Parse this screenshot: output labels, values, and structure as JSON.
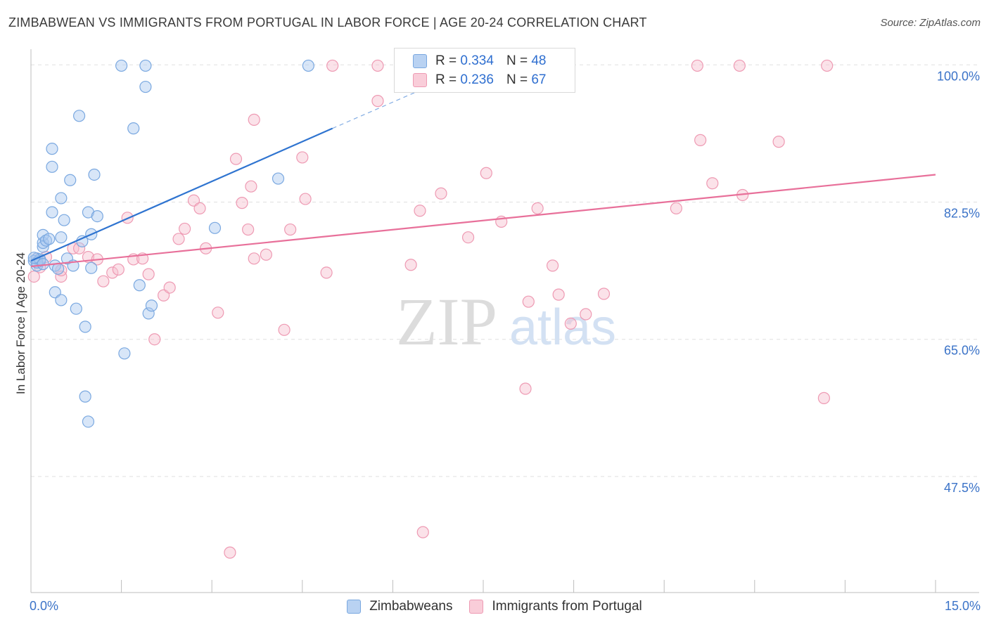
{
  "header": {
    "title": "ZIMBABWEAN VS IMMIGRANTS FROM PORTUGAL IN LABOR FORCE | AGE 20-24 CORRELATION CHART",
    "source": "Source: ZipAtlas.com"
  },
  "watermark": {
    "zip": "ZIP",
    "atlas": "atlas"
  },
  "colors": {
    "blue_fill": "#a9c8f0",
    "blue_stroke": "#7aa8e0",
    "blue_line": "#2f74d0",
    "pink_fill": "#f7bfcf",
    "pink_stroke": "#ee9ab3",
    "pink_line": "#e8709a",
    "axis_label": "#3b73c8",
    "grid": "#e0e0e0"
  },
  "legend_top": {
    "series": [
      {
        "r_label": "R = ",
        "r_value": "0.334",
        "n_label": "N = ",
        "n_value": "48"
      },
      {
        "r_label": "R = ",
        "r_value": "0.236",
        "n_label": "N = ",
        "n_value": "67"
      }
    ]
  },
  "chart_data": {
    "type": "scatter",
    "title": "ZIMBABWEAN VS IMMIGRANTS FROM PORTUGAL IN LABOR FORCE | AGE 20-24 CORRELATION CHART",
    "xlabel": "",
    "ylabel": "In Labor Force | Age 20-24",
    "xlim": [
      0,
      15
    ],
    "ylim": [
      32.7,
      102
    ],
    "x_tick_labels": [
      "0.0%",
      "15.0%"
    ],
    "y_ticks": [
      47.5,
      65.0,
      82.5,
      100.0
    ],
    "y_tick_labels": [
      "47.5%",
      "65.0%",
      "82.5%",
      "100.0%"
    ],
    "legend": [
      "Zimbabweans",
      "Immigrants from Portugal"
    ],
    "series": [
      {
        "name": "Zimbabweans",
        "r": 0.334,
        "n": 48,
        "trend": {
          "x0": 0.0,
          "y0": 75.0,
          "x1": 5.0,
          "y1": 91.9,
          "dash_x1": 7.0,
          "dash_y1": 98.6
        },
        "points": [
          [
            0.1,
            75.3
          ],
          [
            0.1,
            74.4
          ],
          [
            0.15,
            75.0
          ],
          [
            0.2,
            76.8
          ],
          [
            0.2,
            77.3
          ],
          [
            0.2,
            78.3
          ],
          [
            0.25,
            77.6
          ],
          [
            0.3,
            77.8
          ],
          [
            0.35,
            81.2
          ],
          [
            0.35,
            87.0
          ],
          [
            0.35,
            89.3
          ],
          [
            0.4,
            74.4
          ],
          [
            0.4,
            71.0
          ],
          [
            0.45,
            74.0
          ],
          [
            0.5,
            70.0
          ],
          [
            0.5,
            78.0
          ],
          [
            0.5,
            83.0
          ],
          [
            0.55,
            80.2
          ],
          [
            0.6,
            75.3
          ],
          [
            0.65,
            85.3
          ],
          [
            0.7,
            74.4
          ],
          [
            0.75,
            68.9
          ],
          [
            0.8,
            93.5
          ],
          [
            0.85,
            77.5
          ],
          [
            0.9,
            66.6
          ],
          [
            0.9,
            57.7
          ],
          [
            0.95,
            54.5
          ],
          [
            0.95,
            81.2
          ],
          [
            1.0,
            74.1
          ],
          [
            1.0,
            78.4
          ],
          [
            1.05,
            86.0
          ],
          [
            1.1,
            80.7
          ],
          [
            1.5,
            99.9
          ],
          [
            1.55,
            63.2
          ],
          [
            1.7,
            91.9
          ],
          [
            1.8,
            71.9
          ],
          [
            1.9,
            99.9
          ],
          [
            1.9,
            97.2
          ],
          [
            1.95,
            68.3
          ],
          [
            2.0,
            69.3
          ],
          [
            3.05,
            79.2
          ],
          [
            4.1,
            85.5
          ],
          [
            4.6,
            99.9
          ],
          [
            0.05,
            75.0
          ],
          [
            0.1,
            74.8
          ],
          [
            0.15,
            75.2
          ],
          [
            0.05,
            75.4
          ],
          [
            0.2,
            74.6
          ]
        ]
      },
      {
        "name": "Immigrants from Portugal",
        "r": 0.236,
        "n": 67,
        "trend": {
          "x0": 0.0,
          "y0": 74.3,
          "x1": 15.0,
          "y1": 86.0
        },
        "points": [
          [
            0.05,
            73.0
          ],
          [
            0.1,
            75.3
          ],
          [
            0.15,
            74.2
          ],
          [
            0.25,
            75.5
          ],
          [
            0.5,
            73.0
          ],
          [
            0.5,
            73.8
          ],
          [
            0.7,
            76.6
          ],
          [
            0.8,
            76.6
          ],
          [
            0.95,
            75.5
          ],
          [
            1.1,
            75.2
          ],
          [
            1.2,
            72.4
          ],
          [
            1.35,
            73.5
          ],
          [
            1.45,
            73.9
          ],
          [
            1.6,
            80.5
          ],
          [
            1.7,
            75.2
          ],
          [
            1.85,
            75.3
          ],
          [
            1.95,
            73.3
          ],
          [
            2.05,
            65.0
          ],
          [
            2.2,
            70.6
          ],
          [
            2.3,
            71.6
          ],
          [
            2.45,
            77.8
          ],
          [
            2.55,
            79.1
          ],
          [
            2.7,
            82.7
          ],
          [
            2.8,
            81.7
          ],
          [
            2.9,
            76.6
          ],
          [
            3.1,
            68.4
          ],
          [
            3.3,
            37.8
          ],
          [
            3.4,
            88.0
          ],
          [
            3.5,
            82.4
          ],
          [
            3.6,
            79.0
          ],
          [
            3.7,
            93.0
          ],
          [
            3.7,
            75.3
          ],
          [
            3.65,
            84.5
          ],
          [
            3.9,
            75.8
          ],
          [
            4.2,
            66.2
          ],
          [
            4.3,
            79.0
          ],
          [
            4.5,
            88.2
          ],
          [
            4.55,
            82.9
          ],
          [
            4.9,
            73.5
          ],
          [
            5.0,
            99.9
          ],
          [
            5.75,
            99.9
          ],
          [
            5.75,
            95.4
          ],
          [
            6.3,
            74.5
          ],
          [
            6.45,
            81.4
          ],
          [
            6.5,
            40.4
          ],
          [
            6.8,
            83.6
          ],
          [
            7.0,
            99.9
          ],
          [
            7.25,
            78.0
          ],
          [
            7.55,
            86.2
          ],
          [
            7.8,
            80.0
          ],
          [
            8.2,
            58.7
          ],
          [
            8.25,
            69.8
          ],
          [
            8.4,
            81.7
          ],
          [
            8.65,
            74.4
          ],
          [
            8.75,
            70.7
          ],
          [
            8.95,
            67.0
          ],
          [
            9.2,
            68.2
          ],
          [
            9.5,
            70.8
          ],
          [
            10.7,
            81.7
          ],
          [
            11.1,
            90.4
          ],
          [
            11.05,
            99.9
          ],
          [
            11.3,
            84.9
          ],
          [
            11.75,
            99.9
          ],
          [
            11.8,
            83.4
          ],
          [
            12.4,
            90.2
          ],
          [
            13.2,
            99.9
          ],
          [
            13.15,
            57.5
          ]
        ]
      }
    ]
  }
}
